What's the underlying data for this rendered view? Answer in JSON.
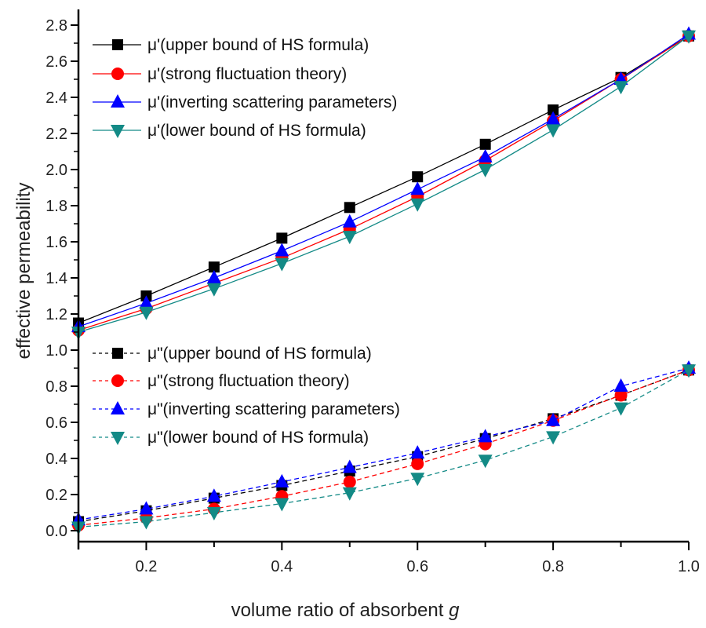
{
  "chart_data": {
    "type": "line",
    "title": "",
    "xlabel": "volume ratio of absorbent",
    "xlabel_italic": "g",
    "ylabel": "effective permeability",
    "xlim": [
      0.1,
      1.0
    ],
    "ylim": [
      0.0,
      2.8
    ],
    "xticks": [
      "0.2",
      "0.4",
      "0.6",
      "0.8",
      "1.0"
    ],
    "yticks": [
      "0.0",
      "0.2",
      "0.4",
      "0.6",
      "0.8",
      "1.0",
      "1.2",
      "1.4",
      "1.6",
      "1.8",
      "2.0",
      "2.2",
      "2.4",
      "2.6",
      "2.8"
    ],
    "grid": false,
    "x": [
      0.1,
      0.2,
      0.3,
      0.4,
      0.5,
      0.6,
      0.7,
      0.8,
      0.9,
      1.0
    ],
    "series": [
      {
        "name": "μ'(upper bound of HS formula)",
        "color": "#000000",
        "marker": "square",
        "dash": "solid",
        "values": [
          1.15,
          1.3,
          1.46,
          1.62,
          1.79,
          1.96,
          2.14,
          2.33,
          2.51,
          2.74
        ]
      },
      {
        "name": "μ'(strong fluctuation theory)",
        "color": "#ff0000",
        "marker": "circle",
        "dash": "solid",
        "values": [
          1.11,
          1.23,
          1.37,
          1.51,
          1.67,
          1.85,
          2.05,
          2.27,
          2.5,
          2.74
        ]
      },
      {
        "name": "μ'(inverting scattering parameters)",
        "color": "#0000ff",
        "marker": "triangle-up",
        "dash": "solid",
        "values": [
          1.13,
          1.26,
          1.4,
          1.55,
          1.71,
          1.89,
          2.07,
          2.28,
          2.5,
          2.75
        ]
      },
      {
        "name": "μ'(lower bound of HS formula)",
        "color": "#138a86",
        "marker": "triangle-down",
        "dash": "solid",
        "values": [
          1.1,
          1.21,
          1.34,
          1.48,
          1.63,
          1.81,
          2.0,
          2.22,
          2.46,
          2.74
        ]
      },
      {
        "name": "μ\"(upper bound of HS formula)",
        "color": "#000000",
        "marker": "square",
        "dash": "dashed",
        "values": [
          0.05,
          0.11,
          0.18,
          0.25,
          0.33,
          0.41,
          0.51,
          0.62,
          0.75,
          0.89
        ]
      },
      {
        "name": "μ\"(strong fluctuation theory)",
        "color": "#ff0000",
        "marker": "circle",
        "dash": "dashed",
        "values": [
          0.03,
          0.07,
          0.12,
          0.19,
          0.27,
          0.37,
          0.48,
          0.61,
          0.75,
          0.89
        ]
      },
      {
        "name": "μ\"(inverting scattering parameters)",
        "color": "#0000ff",
        "marker": "triangle-up",
        "dash": "dashed",
        "values": [
          0.06,
          0.12,
          0.19,
          0.27,
          0.35,
          0.43,
          0.52,
          0.61,
          0.8,
          0.9
        ]
      },
      {
        "name": "μ\"(lower bound of HS formula)",
        "color": "#138a86",
        "marker": "triangle-down",
        "dash": "dashed",
        "values": [
          0.02,
          0.05,
          0.1,
          0.15,
          0.21,
          0.29,
          0.39,
          0.52,
          0.68,
          0.89
        ]
      }
    ],
    "legend": [
      "top-left",
      "middle-left"
    ]
  }
}
